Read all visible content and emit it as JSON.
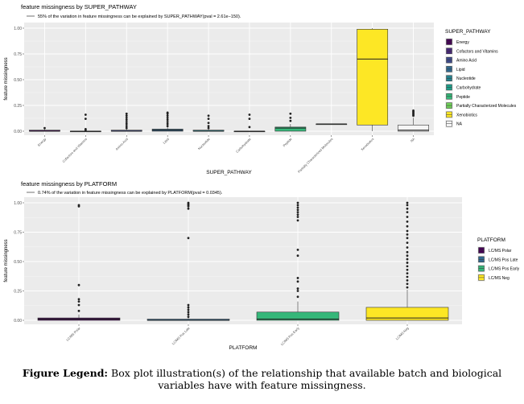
{
  "chart_data": [
    {
      "type": "box",
      "title": "feature missingness by SUPER_PATHWAY",
      "subtitle": "55% of the variation in feature missingness can be explained by SUPER_PATHWAY(pval = 2.61e−150).",
      "xlabel": "SUPER_PATHWAY",
      "ylabel": "feature missingness",
      "ylim": [
        0,
        1
      ],
      "yticks": [
        "0.00",
        "0.25",
        "0.50",
        "0.75",
        "1.00"
      ],
      "legend_title": "SUPER_PATHWAY",
      "legend_position": "right",
      "categories": [
        "Energy",
        "Cofactors and Vitamins",
        "Amino Acid",
        "Lipid",
        "Nucleotide",
        "Carbohydrate",
        "Peptide",
        "Partially Characterized Molecules",
        "Xenobiotics",
        "NA"
      ],
      "colors": [
        "#440154",
        "#482878",
        "#3e4a89",
        "#31688e",
        "#26828e",
        "#1f9e89",
        "#35b779",
        "#6ece58",
        "#fde725",
        "#f5f5f5"
      ],
      "boxes": [
        {
          "q1": 0.0,
          "median": 0.0,
          "q3": 0.01,
          "whisker_low": 0.0,
          "whisker_high": 0.02,
          "outliers": [
            0.03
          ]
        },
        {
          "q1": 0.0,
          "median": 0.0,
          "q3": 0.0,
          "whisker_low": 0.0,
          "whisker_high": 0.0,
          "outliers": [
            0.01,
            0.02,
            0.12,
            0.16
          ]
        },
        {
          "q1": 0.0,
          "median": 0.0,
          "q3": 0.01,
          "whisker_low": 0.0,
          "whisker_high": 0.02,
          "outliers": [
            0.03,
            0.05,
            0.07,
            0.09,
            0.11,
            0.13,
            0.15,
            0.17
          ]
        },
        {
          "q1": 0.0,
          "median": 0.01,
          "q3": 0.02,
          "whisker_low": 0.0,
          "whisker_high": 0.04,
          "outliers": [
            0.05,
            0.07,
            0.09,
            0.11,
            0.13,
            0.15,
            0.17,
            0.18
          ]
        },
        {
          "q1": 0.0,
          "median": 0.0,
          "q3": 0.01,
          "whisker_low": 0.0,
          "whisker_high": 0.02,
          "outliers": [
            0.03,
            0.05,
            0.08,
            0.12,
            0.15
          ]
        },
        {
          "q1": 0.0,
          "median": 0.0,
          "q3": 0.0,
          "whisker_low": 0.0,
          "whisker_high": 0.0,
          "outliers": [
            0.04,
            0.12,
            0.16
          ]
        },
        {
          "q1": 0.0,
          "median": 0.03,
          "q3": 0.04,
          "whisker_low": 0.0,
          "whisker_high": 0.07,
          "outliers": [
            0.1,
            0.13,
            0.17
          ]
        },
        {
          "q1": 0.07,
          "median": 0.07,
          "q3": 0.07,
          "whisker_low": 0.07,
          "whisker_high": 0.07,
          "outliers": []
        },
        {
          "q1": 0.06,
          "median": 0.7,
          "q3": 0.99,
          "whisker_low": 0.0,
          "whisker_high": 1.0,
          "outliers": []
        },
        {
          "q1": 0.0,
          "median": 0.01,
          "q3": 0.06,
          "whisker_low": 0.0,
          "whisker_high": 0.13,
          "outliers": [
            0.15,
            0.16,
            0.17,
            0.18,
            0.19,
            0.2
          ]
        }
      ]
    },
    {
      "type": "box",
      "title": "feature missingness by PLATFORM",
      "subtitle": "0.74% of the variation in feature missingness can be explained by PLATFORM(pval = 0.0345).",
      "xlabel": "PLATFORM",
      "ylabel": "feature missingness",
      "ylim": [
        0,
        1
      ],
      "yticks": [
        "0.00",
        "0.25",
        "0.50",
        "0.75",
        "1.00"
      ],
      "legend_title": "PLATFORM",
      "legend_position": "right",
      "categories": [
        "LC/MS Polar",
        "LC/MS Pos Late",
        "LC/MS Pos Early",
        "LC/MS Neg"
      ],
      "colors": [
        "#440154",
        "#31688e",
        "#35b779",
        "#fde725"
      ],
      "boxes": [
        {
          "q1": 0.0,
          "median": 0.01,
          "q3": 0.02,
          "whisker_low": 0.0,
          "whisker_high": 0.05,
          "outliers": [
            0.08,
            0.13,
            0.16,
            0.18,
            0.3,
            0.97,
            0.98
          ]
        },
        {
          "q1": 0.0,
          "median": 0.0,
          "q3": 0.01,
          "whisker_low": 0.0,
          "whisker_high": 0.02,
          "outliers": [
            0.03,
            0.05,
            0.07,
            0.09,
            0.11,
            0.13,
            0.7,
            0.95,
            0.97,
            0.98,
            0.99,
            1.0
          ]
        },
        {
          "q1": 0.0,
          "median": 0.01,
          "q3": 0.07,
          "whisker_low": 0.0,
          "whisker_high": 0.16,
          "outliers": [
            0.2,
            0.25,
            0.27,
            0.33,
            0.36,
            0.55,
            0.6,
            0.85,
            0.88,
            0.9,
            0.92,
            0.94,
            0.96,
            0.98,
            1.0
          ]
        },
        {
          "q1": 0.0,
          "median": 0.02,
          "q3": 0.11,
          "whisker_low": 0.0,
          "whisker_high": 0.26,
          "outliers": [
            0.28,
            0.31,
            0.34,
            0.37,
            0.4,
            0.43,
            0.46,
            0.49,
            0.52,
            0.55,
            0.58,
            0.62,
            0.66,
            0.7,
            0.73,
            0.76,
            0.8,
            0.84,
            0.88,
            0.92,
            0.95,
            0.98,
            1.0
          ]
        }
      ]
    }
  ],
  "caption": {
    "bold": "Figure Legend:",
    "text": " Box plot illustration(s) of the relationship that available batch and biological variables have with feature missingness."
  }
}
